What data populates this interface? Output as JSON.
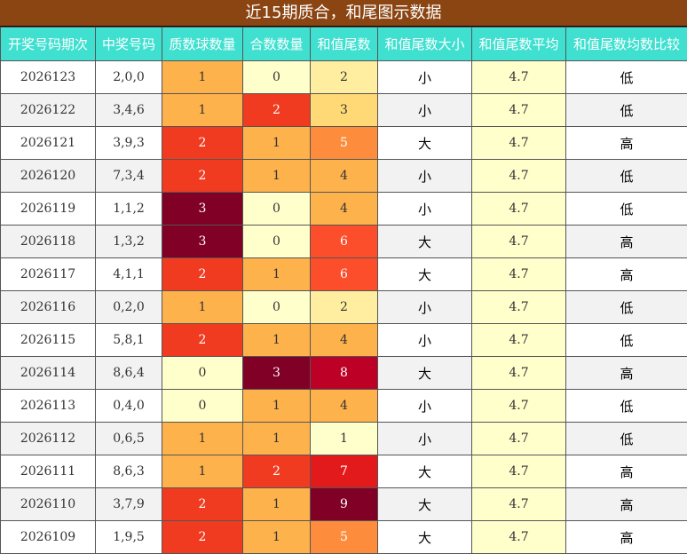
{
  "title": "近15期质合，和尾图示数据",
  "columns": [
    "开奖号码期次",
    "中奖号码",
    "质数球数量",
    "合数数量",
    "和值尾数",
    "和值尾数大小",
    "和值尾数平均",
    "和值尾数均数比较"
  ],
  "heat_colors": {
    "0": "#ffffcc",
    "1": "#feb24c",
    "2": "#f03b20",
    "3": "#800026",
    "tail_1": "#ffffcc",
    "tail_2": "#ffeda0",
    "tail_3": "#fed976",
    "tail_4": "#feb24c",
    "tail_5": "#fd8d3c",
    "tail_6": "#fc4e2a",
    "tail_7": "#e31a1c",
    "tail_8": "#bd0026",
    "tail_9": "#800026"
  },
  "rows": [
    {
      "period": "2026123",
      "numbers": "2,0,0",
      "prime": "1",
      "composite": "0",
      "tail": "2",
      "size": "小",
      "avg": "4.7",
      "cmp": "低"
    },
    {
      "period": "2026122",
      "numbers": "3,4,6",
      "prime": "1",
      "composite": "2",
      "tail": "3",
      "size": "小",
      "avg": "4.7",
      "cmp": "低"
    },
    {
      "period": "2026121",
      "numbers": "3,9,3",
      "prime": "2",
      "composite": "1",
      "tail": "5",
      "size": "大",
      "avg": "4.7",
      "cmp": "高"
    },
    {
      "period": "2026120",
      "numbers": "7,3,4",
      "prime": "2",
      "composite": "1",
      "tail": "4",
      "size": "小",
      "avg": "4.7",
      "cmp": "低"
    },
    {
      "period": "2026119",
      "numbers": "1,1,2",
      "prime": "3",
      "composite": "0",
      "tail": "4",
      "size": "小",
      "avg": "4.7",
      "cmp": "低"
    },
    {
      "period": "2026118",
      "numbers": "1,3,2",
      "prime": "3",
      "composite": "0",
      "tail": "6",
      "size": "大",
      "avg": "4.7",
      "cmp": "高"
    },
    {
      "period": "2026117",
      "numbers": "4,1,1",
      "prime": "2",
      "composite": "1",
      "tail": "6",
      "size": "大",
      "avg": "4.7",
      "cmp": "高"
    },
    {
      "period": "2026116",
      "numbers": "0,2,0",
      "prime": "1",
      "composite": "0",
      "tail": "2",
      "size": "小",
      "avg": "4.7",
      "cmp": "低"
    },
    {
      "period": "2026115",
      "numbers": "5,8,1",
      "prime": "2",
      "composite": "1",
      "tail": "4",
      "size": "小",
      "avg": "4.7",
      "cmp": "低"
    },
    {
      "period": "2026114",
      "numbers": "8,6,4",
      "prime": "0",
      "composite": "3",
      "tail": "8",
      "size": "大",
      "avg": "4.7",
      "cmp": "高"
    },
    {
      "period": "2026113",
      "numbers": "0,4,0",
      "prime": "0",
      "composite": "1",
      "tail": "4",
      "size": "小",
      "avg": "4.7",
      "cmp": "低"
    },
    {
      "period": "2026112",
      "numbers": "0,6,5",
      "prime": "1",
      "composite": "1",
      "tail": "1",
      "size": "小",
      "avg": "4.7",
      "cmp": "低"
    },
    {
      "period": "2026111",
      "numbers": "8,6,3",
      "prime": "1",
      "composite": "2",
      "tail": "7",
      "size": "大",
      "avg": "4.7",
      "cmp": "高"
    },
    {
      "period": "2026110",
      "numbers": "3,7,9",
      "prime": "2",
      "composite": "1",
      "tail": "9",
      "size": "大",
      "avg": "4.7",
      "cmp": "高"
    },
    {
      "period": "2026109",
      "numbers": "1,9,5",
      "prime": "2",
      "composite": "1",
      "tail": "5",
      "size": "大",
      "avg": "4.7",
      "cmp": "高"
    }
  ]
}
